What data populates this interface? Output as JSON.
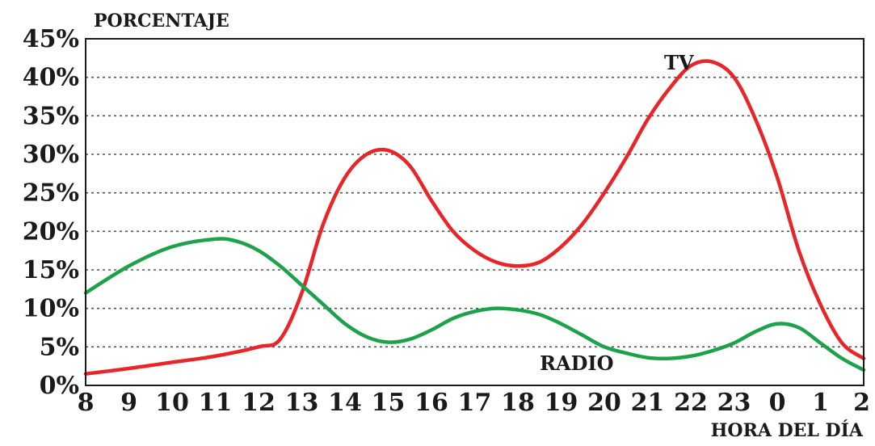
{
  "chart_data": {
    "type": "line",
    "title": "",
    "ylabel": "PORCENTAJE",
    "xlabel": "HORA DEL DÍA",
    "x_ticks": [
      "8",
      "9",
      "10",
      "11",
      "12",
      "13",
      "14",
      "15",
      "16",
      "17",
      "18",
      "19",
      "20",
      "21",
      "22",
      "23",
      "0",
      "1",
      "2"
    ],
    "y_ticks": [
      "0%",
      "5%",
      "10%",
      "15%",
      "20%",
      "25%",
      "30%",
      "35%",
      "40%",
      "45%"
    ],
    "ylim": [
      0,
      45
    ],
    "x_hours": [
      8,
      9,
      10,
      11,
      12,
      13,
      14,
      15,
      16,
      17,
      18,
      19,
      20,
      21,
      22,
      23,
      24,
      25,
      26
    ],
    "grid": "horizontal dotted",
    "series": [
      {
        "name": "TV",
        "color": "#e8262a",
        "x": [
          8,
          9,
          10,
          11,
          12,
          12.5,
          13,
          13.5,
          14,
          14.5,
          15,
          15.5,
          16,
          16.5,
          17,
          17.5,
          18,
          18.5,
          19,
          19.5,
          20,
          20.5,
          21,
          21.5,
          22,
          22.5,
          23,
          23.5,
          24,
          24.5,
          25,
          25.5,
          26
        ],
        "values": [
          1.5,
          2.2,
          3.0,
          3.8,
          5.0,
          6.0,
          12.0,
          21.0,
          27.0,
          30.0,
          30.5,
          28.5,
          24.0,
          20.0,
          17.5,
          16.0,
          15.5,
          16.0,
          18.0,
          21.0,
          25.0,
          29.5,
          34.5,
          38.5,
          41.5,
          42.0,
          40.0,
          34.5,
          27.0,
          17.5,
          10.5,
          5.5,
          3.5
        ]
      },
      {
        "name": "RADIO",
        "color": "#1ca24a",
        "x": [
          8,
          9,
          10,
          11,
          11.5,
          12,
          12.5,
          13,
          13.5,
          14,
          14.5,
          15,
          15.5,
          16,
          16.5,
          17,
          17.5,
          18,
          18.5,
          19,
          19.5,
          20,
          20.5,
          21,
          21.5,
          22,
          22.5,
          23,
          23.5,
          24,
          24.5,
          25,
          25.5,
          26
        ],
        "values": [
          12.0,
          15.5,
          18.0,
          19.0,
          18.7,
          17.5,
          15.5,
          13.0,
          10.5,
          8.0,
          6.3,
          5.6,
          6.0,
          7.2,
          8.7,
          9.6,
          10.0,
          9.8,
          9.2,
          8.0,
          6.5,
          5.0,
          4.2,
          3.6,
          3.5,
          3.8,
          4.5,
          5.5,
          7.0,
          8.0,
          7.5,
          5.5,
          3.5,
          2.0
        ]
      }
    ]
  }
}
